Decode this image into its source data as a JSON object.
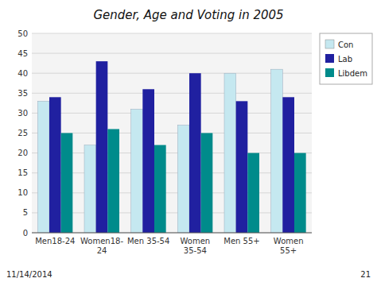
{
  "chart_data": {
    "type": "bar",
    "title": "Gender, Age and Voting in 2005",
    "categories": [
      "Men18-24",
      "Women18-\n24",
      "Men 35-54",
      "Women\n35-54",
      "Men 55+",
      "Women\n55+"
    ],
    "series": [
      {
        "name": "Con",
        "color": "#c5e8f0",
        "values": [
          33,
          22,
          31,
          27,
          40,
          41
        ]
      },
      {
        "name": "Lab",
        "color": "#2020a0",
        "values": [
          34,
          43,
          36,
          40,
          33,
          34
        ]
      },
      {
        "name": "Libdem",
        "color": "#008b8b",
        "values": [
          25,
          26,
          22,
          25,
          20,
          20
        ]
      }
    ],
    "ylim": [
      0,
      50
    ],
    "yticks": [
      0,
      5,
      10,
      15,
      20,
      25,
      30,
      35,
      40,
      45,
      50
    ],
    "grid": true,
    "legend": "upper right",
    "annotations": [
      "11/14/2014",
      "21"
    ]
  }
}
